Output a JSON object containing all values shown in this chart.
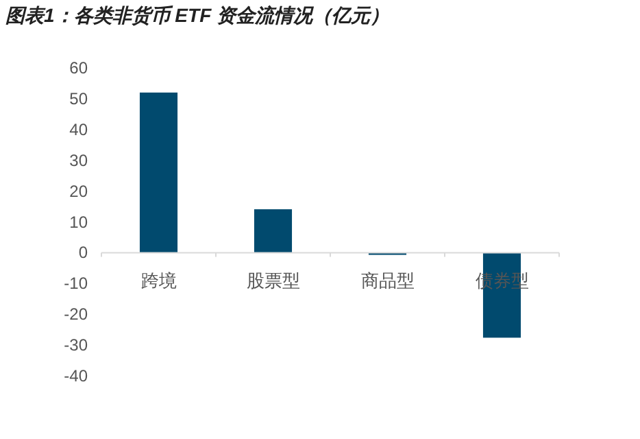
{
  "chart_data": {
    "type": "bar",
    "title": "图表1：各类非货币 ETF 资金流情况（亿元）",
    "categories": [
      "跨境",
      "股票型",
      "商品型",
      "债券型"
    ],
    "values": [
      52,
      14.1,
      -0.7,
      -27.6
    ],
    "color": "#014a6e",
    "ylim": [
      -40,
      60
    ],
    "yticks": [
      -40,
      -30,
      -20,
      -10,
      0,
      10,
      20,
      30,
      40,
      50,
      60
    ],
    "grid": false
  }
}
